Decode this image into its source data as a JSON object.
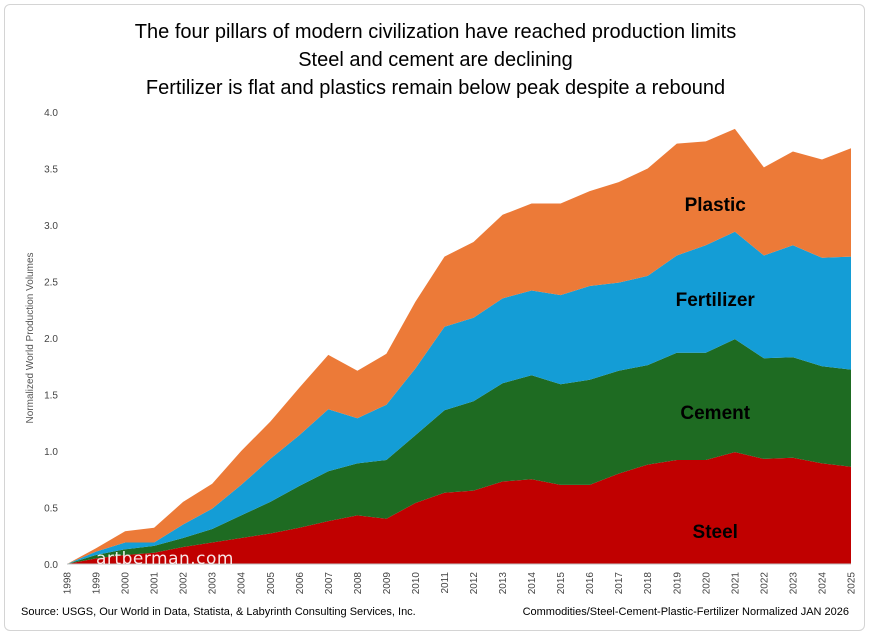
{
  "titles": [
    "The four pillars of modern civilization have reached production limits",
    "Steel and cement are declining",
    "Fertilizer is flat and plastics remain below peak despite a rebound"
  ],
  "footer": {
    "source": "Source: USGS, Our World in Data, Statista, & Labyrinth Consulting Services, Inc.",
    "note": "Commodities/Steel-Cement-Plastic-Fertilizer Normalized JAN 2026"
  },
  "watermark": "artberman.com",
  "chart_data": {
    "type": "area",
    "stacked": true,
    "ylabel": "Normalized World Production Volumes",
    "xlabel": "",
    "ylim": [
      0,
      4.0
    ],
    "yticks": [
      "0.0",
      "0.5",
      "1.0",
      "1.5",
      "2.0",
      "2.5",
      "3.0",
      "3.5",
      "4.0"
    ],
    "categories": [
      "1998",
      "1999",
      "2000",
      "2001",
      "2002",
      "2003",
      "2004",
      "2005",
      "2006",
      "2007",
      "2008",
      "2009",
      "2010",
      "2011",
      "2012",
      "2013",
      "2014",
      "2015",
      "2016",
      "2017",
      "2018",
      "2019",
      "2020",
      "2021",
      "2022",
      "2023",
      "2024",
      "2025"
    ],
    "series": [
      {
        "name": "Steel",
        "label": "Steel",
        "color": "#c00000",
        "values": [
          0.0,
          0.05,
          0.08,
          0.1,
          0.15,
          0.19,
          0.23,
          0.27,
          0.32,
          0.38,
          0.43,
          0.4,
          0.54,
          0.63,
          0.65,
          0.73,
          0.75,
          0.7,
          0.7,
          0.8,
          0.88,
          0.92,
          0.92,
          0.99,
          0.93,
          0.94,
          0.89,
          0.86
        ]
      },
      {
        "name": "Cement",
        "label": "Cement",
        "color": "#1e6b22",
        "values": [
          0.0,
          0.03,
          0.05,
          0.06,
          0.08,
          0.12,
          0.2,
          0.28,
          0.37,
          0.44,
          0.46,
          0.52,
          0.6,
          0.73,
          0.79,
          0.87,
          0.92,
          0.89,
          0.93,
          0.91,
          0.88,
          0.95,
          0.95,
          1.0,
          0.89,
          0.89,
          0.86,
          0.86
        ]
      },
      {
        "name": "Fertilizer",
        "label": "Fertilizer",
        "color": "#149dd6",
        "values": [
          0.0,
          0.03,
          0.06,
          0.03,
          0.12,
          0.18,
          0.27,
          0.38,
          0.45,
          0.55,
          0.4,
          0.49,
          0.59,
          0.74,
          0.74,
          0.75,
          0.75,
          0.79,
          0.83,
          0.78,
          0.79,
          0.86,
          0.95,
          0.95,
          0.91,
          0.99,
          0.96,
          1.0
        ]
      },
      {
        "name": "Plastic",
        "label": "Plastic",
        "color": "#ec7a38",
        "values": [
          0.0,
          0.03,
          0.1,
          0.13,
          0.2,
          0.22,
          0.3,
          0.33,
          0.42,
          0.48,
          0.42,
          0.45,
          0.59,
          0.62,
          0.67,
          0.74,
          0.77,
          0.81,
          0.84,
          0.89,
          0.95,
          0.99,
          0.92,
          0.91,
          0.78,
          0.83,
          0.87,
          0.96
        ]
      }
    ]
  }
}
